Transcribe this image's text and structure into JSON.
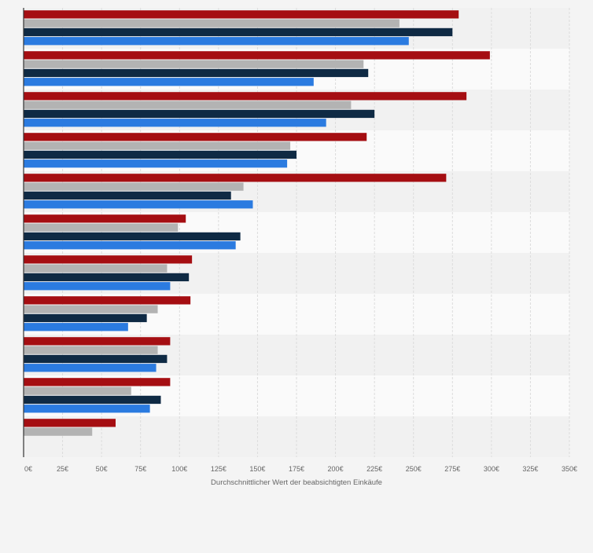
{
  "chart_data": {
    "type": "bar",
    "orientation": "horizontal",
    "title": "",
    "xlabel": "Durchschnittlicher Wert der beabsichtigten Einkäufe",
    "ylabel": "",
    "categories": [
      "",
      "",
      "",
      "",
      "",
      "",
      "",
      "",
      "",
      "",
      ""
    ],
    "xlim": [
      0,
      350
    ],
    "tick_values": [
      0,
      25,
      50,
      75,
      100,
      125,
      150,
      175,
      200,
      225,
      250,
      275,
      300,
      325,
      350
    ],
    "tick_labels": [
      "0€",
      "25€",
      "50€",
      "75€",
      "100€",
      "125€",
      "150€",
      "175€",
      "200€",
      "225€",
      "250€",
      "275€",
      "300€",
      "325€",
      "350€"
    ],
    "grid": true,
    "legend": "none",
    "series": [
      {
        "color": "#a50e12",
        "values": [
          279,
          299,
          284,
          220,
          271,
          104,
          108,
          107,
          94,
          94,
          59
        ]
      },
      {
        "color": "#b3b3b3",
        "values": [
          241,
          218,
          210,
          171,
          141,
          99,
          92,
          86,
          86,
          69,
          44
        ]
      },
      {
        "color": "#0f2a44",
        "values": [
          275,
          221,
          225,
          175,
          133,
          139,
          106,
          79,
          92,
          88,
          null
        ]
      },
      {
        "color": "#2b7be0",
        "values": [
          247,
          186,
          194,
          169,
          147,
          136,
          94,
          67,
          85,
          81,
          null
        ]
      }
    ]
  }
}
